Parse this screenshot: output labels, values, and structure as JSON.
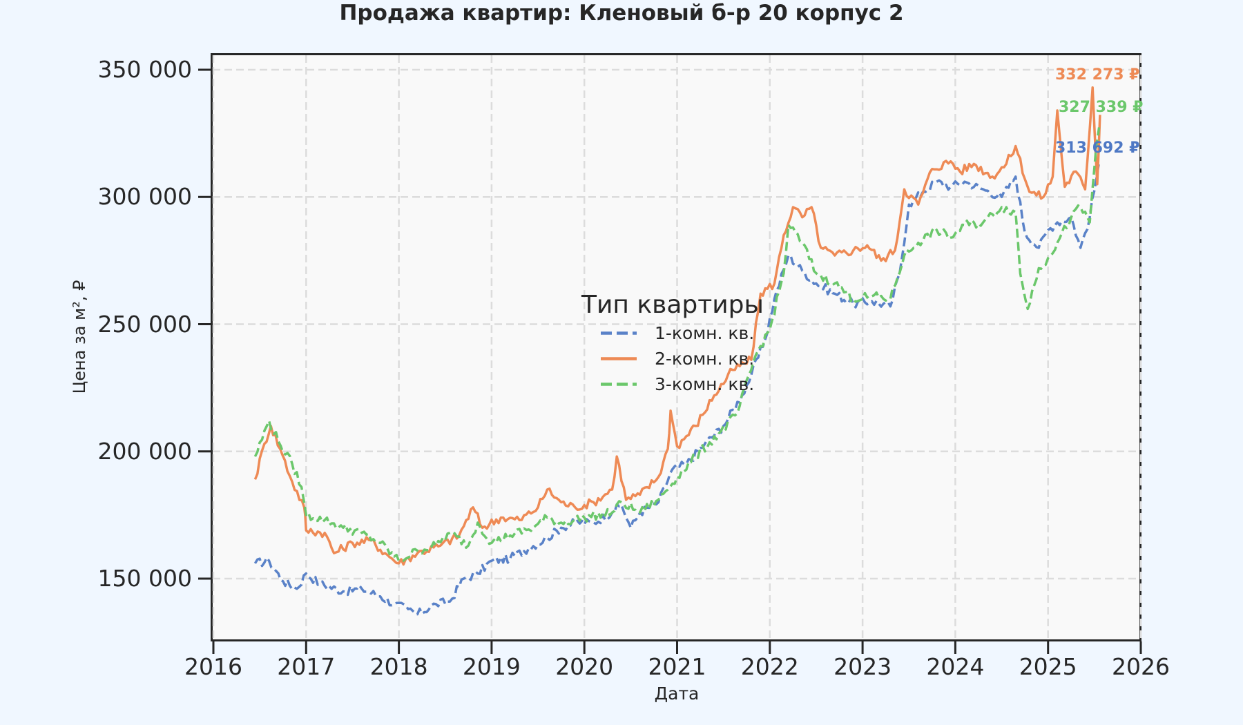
{
  "title": "Продажа квартир: Кленовый б-р 20 корпус 2",
  "axes": {
    "xlabel": "Дата",
    "ylabel": "Цена за м², ₽",
    "xticks": [
      "2016",
      "2017",
      "2018",
      "2019",
      "2020",
      "2021",
      "2022",
      "2023",
      "2024",
      "2025",
      "2026"
    ],
    "yticks": [
      "150 000",
      "200 000",
      "250 000",
      "300 000",
      "350 000"
    ]
  },
  "legend": {
    "title": "Тип квартиры",
    "items": [
      {
        "label": "1-комн. кв.",
        "color": "#5a82c8",
        "style": "dashed"
      },
      {
        "label": "2-комн. кв.",
        "color": "#ee8a55",
        "style": "solid"
      },
      {
        "label": "3-комн. кв.",
        "color": "#6bc76b",
        "style": "dashed"
      }
    ]
  },
  "end_labels": [
    {
      "text": "332 273 ₽",
      "color": "#ee8a55"
    },
    {
      "text": "327 339 ₽",
      "color": "#6bc76b"
    },
    {
      "text": "313 692 ₽",
      "color": "#4e78c4"
    }
  ],
  "chart_data": {
    "type": "line",
    "title": "Продажа квартир: Кленовый б-р 20 корпус 2",
    "xlabel": "Дата",
    "ylabel": "Цена за м², ₽",
    "xlim": [
      2016,
      2026
    ],
    "ylim": [
      125000,
      358000
    ],
    "grid": true,
    "legend_position": "center",
    "series": [
      {
        "name": "1-комн. кв.",
        "color": "#5a82c8",
        "style": "dashed",
        "points": [
          [
            2016.45,
            156000
          ],
          [
            2016.6,
            157000
          ],
          [
            2016.75,
            149000
          ],
          [
            2016.9,
            146000
          ],
          [
            2017.0,
            152000
          ],
          [
            2017.15,
            148000
          ],
          [
            2017.4,
            145000
          ],
          [
            2017.6,
            146000
          ],
          [
            2017.8,
            143000
          ],
          [
            2017.95,
            140000
          ],
          [
            2018.1,
            138000
          ],
          [
            2018.2,
            136000
          ],
          [
            2018.4,
            140000
          ],
          [
            2018.55,
            141000
          ],
          [
            2018.7,
            150000
          ],
          [
            2018.85,
            152000
          ],
          [
            2019.0,
            157000
          ],
          [
            2019.2,
            158000
          ],
          [
            2019.4,
            162000
          ],
          [
            2019.6,
            166000
          ],
          [
            2019.75,
            170000
          ],
          [
            2019.9,
            172000
          ],
          [
            2020.1,
            172000
          ],
          [
            2020.3,
            176000
          ],
          [
            2020.4,
            179000
          ],
          [
            2020.5,
            170000
          ],
          [
            2020.6,
            176000
          ],
          [
            2020.8,
            180000
          ],
          [
            2020.95,
            193000
          ],
          [
            2021.1,
            195000
          ],
          [
            2021.3,
            203000
          ],
          [
            2021.5,
            210000
          ],
          [
            2021.7,
            222000
          ],
          [
            2021.8,
            230000
          ],
          [
            2021.95,
            244000
          ],
          [
            2022.05,
            260000
          ],
          [
            2022.2,
            277000
          ],
          [
            2022.35,
            271000
          ],
          [
            2022.5,
            266000
          ],
          [
            2022.7,
            262000
          ],
          [
            2022.9,
            258000
          ],
          [
            2023.1,
            259000
          ],
          [
            2023.3,
            257000
          ],
          [
            2023.4,
            270000
          ],
          [
            2023.5,
            297000
          ],
          [
            2023.65,
            302000
          ],
          [
            2023.8,
            306000
          ],
          [
            2023.95,
            304000
          ],
          [
            2024.1,
            306000
          ],
          [
            2024.3,
            303000
          ],
          [
            2024.5,
            300000
          ],
          [
            2024.65,
            308000
          ],
          [
            2024.75,
            286000
          ],
          [
            2024.9,
            280000
          ],
          [
            2025.0,
            287000
          ],
          [
            2025.1,
            290000
          ],
          [
            2025.25,
            292000
          ],
          [
            2025.35,
            280000
          ],
          [
            2025.45,
            292000
          ],
          [
            2025.55,
            313692
          ]
        ]
      },
      {
        "name": "2-комн. кв.",
        "color": "#ee8a55",
        "style": "solid",
        "points": [
          [
            2016.45,
            189000
          ],
          [
            2016.55,
            203000
          ],
          [
            2016.62,
            210000
          ],
          [
            2016.72,
            201000
          ],
          [
            2016.85,
            188000
          ],
          [
            2016.98,
            178000
          ],
          [
            2017.0,
            169000
          ],
          [
            2017.2,
            168000
          ],
          [
            2017.3,
            160000
          ],
          [
            2017.5,
            164000
          ],
          [
            2017.7,
            165000
          ],
          [
            2017.85,
            160000
          ],
          [
            2018.0,
            156000
          ],
          [
            2018.2,
            160000
          ],
          [
            2018.45,
            163000
          ],
          [
            2018.65,
            167000
          ],
          [
            2018.8,
            178000
          ],
          [
            2018.9,
            170000
          ],
          [
            2019.1,
            174000
          ],
          [
            2019.3,
            173000
          ],
          [
            2019.5,
            178000
          ],
          [
            2019.6,
            185000
          ],
          [
            2019.75,
            180000
          ],
          [
            2019.9,
            178000
          ],
          [
            2020.1,
            180000
          ],
          [
            2020.3,
            185000
          ],
          [
            2020.35,
            198000
          ],
          [
            2020.45,
            181000
          ],
          [
            2020.6,
            183000
          ],
          [
            2020.8,
            190000
          ],
          [
            2020.9,
            201000
          ],
          [
            2020.93,
            216000
          ],
          [
            2021.0,
            202000
          ],
          [
            2021.2,
            210000
          ],
          [
            2021.4,
            222000
          ],
          [
            2021.6,
            232000
          ],
          [
            2021.8,
            236000
          ],
          [
            2021.9,
            262000
          ],
          [
            2022.05,
            266000
          ],
          [
            2022.15,
            285000
          ],
          [
            2022.25,
            296000
          ],
          [
            2022.35,
            292000
          ],
          [
            2022.45,
            296000
          ],
          [
            2022.55,
            280000
          ],
          [
            2022.7,
            277000
          ],
          [
            2022.9,
            279000
          ],
          [
            2023.05,
            281000
          ],
          [
            2023.2,
            275000
          ],
          [
            2023.35,
            279000
          ],
          [
            2023.45,
            303000
          ],
          [
            2023.6,
            297000
          ],
          [
            2023.75,
            311000
          ],
          [
            2023.95,
            314000
          ],
          [
            2024.05,
            310000
          ],
          [
            2024.2,
            313000
          ],
          [
            2024.4,
            308000
          ],
          [
            2024.55,
            313000
          ],
          [
            2024.65,
            320000
          ],
          [
            2024.8,
            302000
          ],
          [
            2024.95,
            300000
          ],
          [
            2025.05,
            308000
          ],
          [
            2025.1,
            334000
          ],
          [
            2025.18,
            304000
          ],
          [
            2025.3,
            310000
          ],
          [
            2025.4,
            303000
          ],
          [
            2025.48,
            343000
          ],
          [
            2025.53,
            305000
          ],
          [
            2025.56,
            332273
          ]
        ]
      },
      {
        "name": "3-комн. кв.",
        "color": "#6bc76b",
        "style": "dashed",
        "points": [
          [
            2016.45,
            198000
          ],
          [
            2016.6,
            212000
          ],
          [
            2016.7,
            204000
          ],
          [
            2016.85,
            195000
          ],
          [
            2016.95,
            186000
          ],
          [
            2017.0,
            175000
          ],
          [
            2017.2,
            173000
          ],
          [
            2017.4,
            170000
          ],
          [
            2017.6,
            168000
          ],
          [
            2017.8,
            164000
          ],
          [
            2018.0,
            157000
          ],
          [
            2018.2,
            161000
          ],
          [
            2018.4,
            163000
          ],
          [
            2018.55,
            168000
          ],
          [
            2018.75,
            163000
          ],
          [
            2018.85,
            172000
          ],
          [
            2019.0,
            164000
          ],
          [
            2019.2,
            167000
          ],
          [
            2019.45,
            170000
          ],
          [
            2019.6,
            174000
          ],
          [
            2019.75,
            172000
          ],
          [
            2020.0,
            174000
          ],
          [
            2020.3,
            176000
          ],
          [
            2020.4,
            180000
          ],
          [
            2020.6,
            176000
          ],
          [
            2020.8,
            181000
          ],
          [
            2021.0,
            190000
          ],
          [
            2021.2,
            198000
          ],
          [
            2021.45,
            207000
          ],
          [
            2021.65,
            215000
          ],
          [
            2021.85,
            238000
          ],
          [
            2022.0,
            248000
          ],
          [
            2022.15,
            270000
          ],
          [
            2022.2,
            289000
          ],
          [
            2022.35,
            282000
          ],
          [
            2022.5,
            270000
          ],
          [
            2022.7,
            266000
          ],
          [
            2022.9,
            260000
          ],
          [
            2023.1,
            261000
          ],
          [
            2023.3,
            260000
          ],
          [
            2023.45,
            277000
          ],
          [
            2023.6,
            282000
          ],
          [
            2023.8,
            287000
          ],
          [
            2023.95,
            284000
          ],
          [
            2024.1,
            289000
          ],
          [
            2024.3,
            290000
          ],
          [
            2024.5,
            296000
          ],
          [
            2024.65,
            294000
          ],
          [
            2024.7,
            270000
          ],
          [
            2024.78,
            256000
          ],
          [
            2024.9,
            272000
          ],
          [
            2025.0,
            276000
          ],
          [
            2025.1,
            282000
          ],
          [
            2025.25,
            292000
          ],
          [
            2025.35,
            296000
          ],
          [
            2025.45,
            290000
          ],
          [
            2025.52,
            320000
          ],
          [
            2025.55,
            327339
          ]
        ]
      }
    ]
  }
}
